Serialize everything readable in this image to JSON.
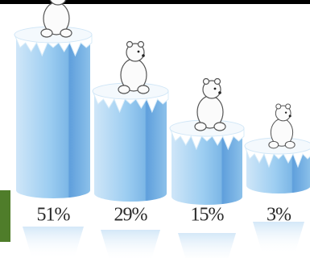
{
  "chart_data": {
    "type": "bar",
    "values": [
      51,
      29,
      15,
      3
    ],
    "value_labels": [
      "51%",
      "29%",
      "15%",
      "3%"
    ],
    "color": "#8ec4ec"
  }
}
